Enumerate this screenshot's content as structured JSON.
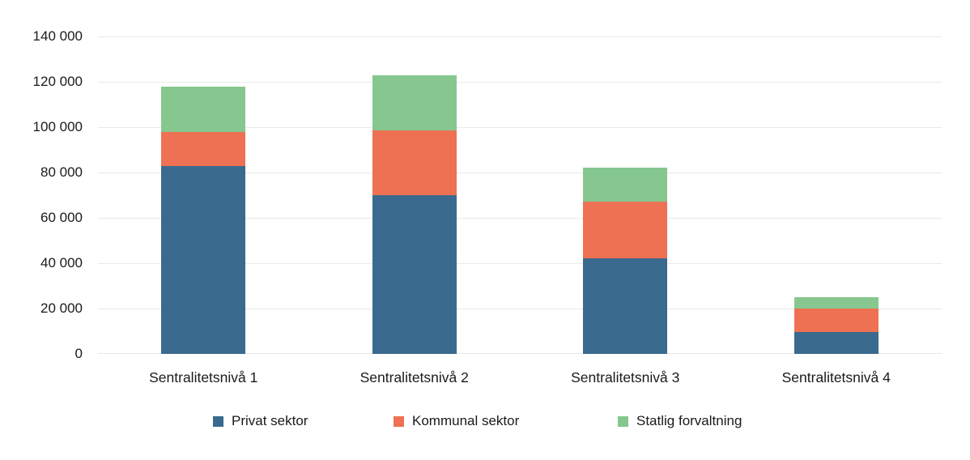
{
  "chart_data": {
    "type": "bar",
    "stacked": true,
    "title": "",
    "xlabel": "",
    "ylabel": "",
    "categories": [
      "Sentralitetsnivå 1",
      "Sentralitetsnivå 2",
      "Sentralitetsnivå 3",
      "Sentralitetsnivå 4"
    ],
    "series": [
      {
        "name": "Privat sektor",
        "color": "#3a6a8d",
        "values": [
          83000,
          70000,
          42000,
          9500
        ]
      },
      {
        "name": "Kommunal sektor",
        "color": "#ed7152",
        "values": [
          15000,
          28500,
          25000,
          10500
        ]
      },
      {
        "name": "Statlig forvaltning",
        "color": "#86c78f",
        "values": [
          20000,
          24500,
          15000,
          5000
        ]
      }
    ],
    "stack_totals": [
      118000,
      123000,
      82000,
      25000
    ],
    "ylim": [
      0,
      140000
    ],
    "ytick_values": [
      0,
      20000,
      40000,
      60000,
      80000,
      100000,
      120000,
      140000
    ],
    "ytick_labels": [
      "0",
      "20 000",
      "40 000",
      "60 000",
      "80 000",
      "100 000",
      "120 000",
      "140 000"
    ],
    "grid": true,
    "gridline_color": "#e9e9e9",
    "text_color": "#1a1a1a",
    "background_color": "#ffffff",
    "legend_position": "bottom"
  }
}
